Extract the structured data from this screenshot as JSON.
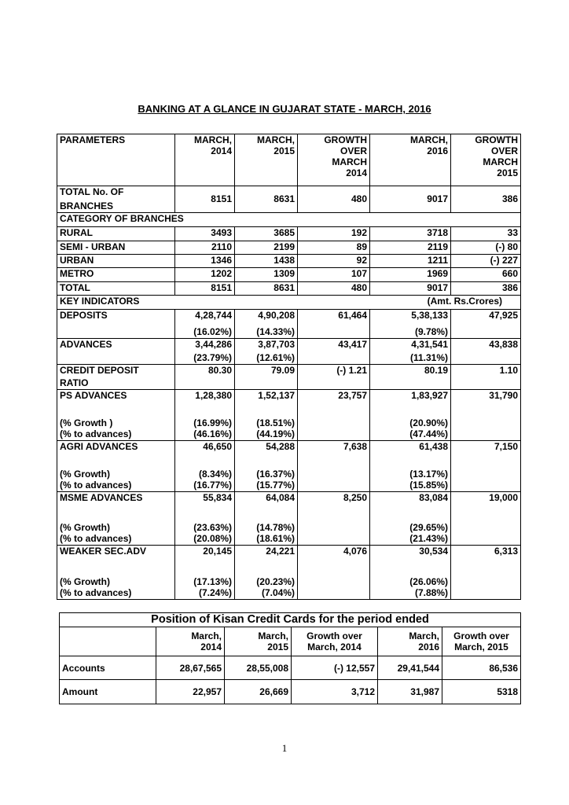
{
  "title": "BANKING AT A GLANCE IN GUJARAT STATE - MARCH, 2016",
  "table": {
    "header": [
      [
        "PARAMETERS"
      ],
      [
        "MARCH,",
        "2014"
      ],
      [
        "MARCH,",
        "2015"
      ],
      [
        "GROWTH",
        "OVER",
        "MARCH",
        "2014"
      ],
      [
        "MARCH,",
        "2016"
      ],
      [
        "GROWTH",
        "OVER",
        "MARCH",
        "2015"
      ]
    ],
    "rows": [
      {
        "cells": [
          [
            "TOTAL No. OF",
            "BRANCHES"
          ],
          [
            "8151"
          ],
          [
            "8631"
          ],
          [
            "480"
          ],
          [
            "9017"
          ],
          [
            "386"
          ]
        ]
      },
      {
        "section": "CATEGORY OF BRANCHES"
      },
      {
        "cells": [
          [
            "RURAL"
          ],
          [
            "3493"
          ],
          [
            "3685"
          ],
          [
            "192"
          ],
          [
            "3718"
          ],
          [
            "33"
          ]
        ]
      },
      {
        "cells": [
          [
            "SEMI - URBAN"
          ],
          [
            "2110"
          ],
          [
            "2199"
          ],
          [
            "89"
          ],
          [
            "2119"
          ],
          [
            "(-) 80"
          ]
        ]
      },
      {
        "cells": [
          [
            "URBAN"
          ],
          [
            "1346"
          ],
          [
            "1438"
          ],
          [
            "92"
          ],
          [
            "1211"
          ],
          [
            "(-) 227"
          ]
        ]
      },
      {
        "cells": [
          [
            "METRO"
          ],
          [
            "1202"
          ],
          [
            "1309"
          ],
          [
            "107"
          ],
          [
            "1969"
          ],
          [
            "660"
          ]
        ]
      },
      {
        "cells": [
          [
            "TOTAL"
          ],
          [
            "8151"
          ],
          [
            "8631"
          ],
          [
            "480"
          ],
          [
            "9017"
          ],
          [
            "386"
          ]
        ]
      },
      {
        "section": "KEY INDICATORS",
        "note": "(Amt. Rs.Crores)"
      },
      {
        "cells": [
          [
            "DEPOSITS"
          ],
          [
            "4,28,744",
            "(16.02%)"
          ],
          [
            "4,90,208",
            "(14.33%)"
          ],
          [
            "61,464"
          ],
          [
            "5,38,133",
            "(9.78%)"
          ],
          [
            "47,925"
          ]
        ]
      },
      {
        "cells": [
          [
            "ADVANCES"
          ],
          [
            "3,44,286",
            "(23.79%)"
          ],
          [
            "3,87,703",
            "(12.61%)"
          ],
          [
            "43,417"
          ],
          [
            "4,31,541",
            "(11.31%)"
          ],
          [
            "43,838"
          ]
        ]
      },
      {
        "cells": [
          [
            "CREDIT DEPOSIT",
            "RATIO"
          ],
          [
            "80.30"
          ],
          [
            "79.09"
          ],
          [
            "(-) 1.21"
          ],
          [
            "80.19"
          ],
          [
            "1.10"
          ]
        ]
      },
      {
        "cells": [
          [
            "PS ADVANCES",
            "(% Growth )",
            "(% to advances)"
          ],
          [
            "1,28,380",
            "(16.99%)",
            "(46.16%)"
          ],
          [
            "1,52,137",
            "(18.51%)",
            "(44.19%)"
          ],
          [
            "23,757"
          ],
          [
            "1,83,927",
            "(20.90%)",
            "(47.44%)"
          ],
          [
            "31,790"
          ]
        ]
      },
      {
        "cells": [
          [
            "AGRI ADVANCES",
            "(% Growth)",
            "(% to advances)"
          ],
          [
            "46,650",
            "(8.34%)",
            "(16.77%)"
          ],
          [
            "54,288",
            "(16.37%)",
            "(15.77%)"
          ],
          [
            "7,638"
          ],
          [
            "61,438",
            "(13.17%)",
            "(15.85%)"
          ],
          [
            "7,150"
          ]
        ]
      },
      {
        "cells": [
          [
            "MSME ADVANCES",
            "(% Growth)",
            "(% to advances)"
          ],
          [
            "55,834",
            "(23.63%)",
            "(20.08%)"
          ],
          [
            "64,084",
            "(14.78%)",
            "(18.61%)"
          ],
          [
            "8,250"
          ],
          [
            "83,084",
            "(29.65%)",
            "(21.43%)"
          ],
          [
            "19,000"
          ]
        ]
      },
      {
        "cells": [
          [
            "WEAKER SEC.ADV",
            "(% Growth)",
            "(% to advances)"
          ],
          [
            "20,145",
            "(17.13%)",
            "(7.24%)"
          ],
          [
            "24,221",
            "(20.23%)",
            "(7.04%)"
          ],
          [
            "4,076"
          ],
          [
            "30,534",
            "(26.06%)",
            "(7.88%)"
          ],
          [
            "6,313"
          ]
        ]
      }
    ]
  },
  "kcc": {
    "title": "Position of Kisan Credit Cards for the period ended",
    "header": [
      [
        "March,",
        "2014"
      ],
      [
        "March,",
        "2015"
      ],
      [
        "Growth over",
        "March,  2014"
      ],
      [
        "March,",
        "2016"
      ],
      [
        "Growth over",
        "March, 2015"
      ]
    ],
    "rows": [
      [
        "Accounts",
        "28,67,565",
        "28,55,008",
        "(-) 12,557",
        "29,41,544",
        "86,536"
      ],
      [
        "Amount",
        "22,957",
        "26,669",
        "3,712",
        "31,987",
        "5318"
      ]
    ]
  },
  "page_number": "1"
}
